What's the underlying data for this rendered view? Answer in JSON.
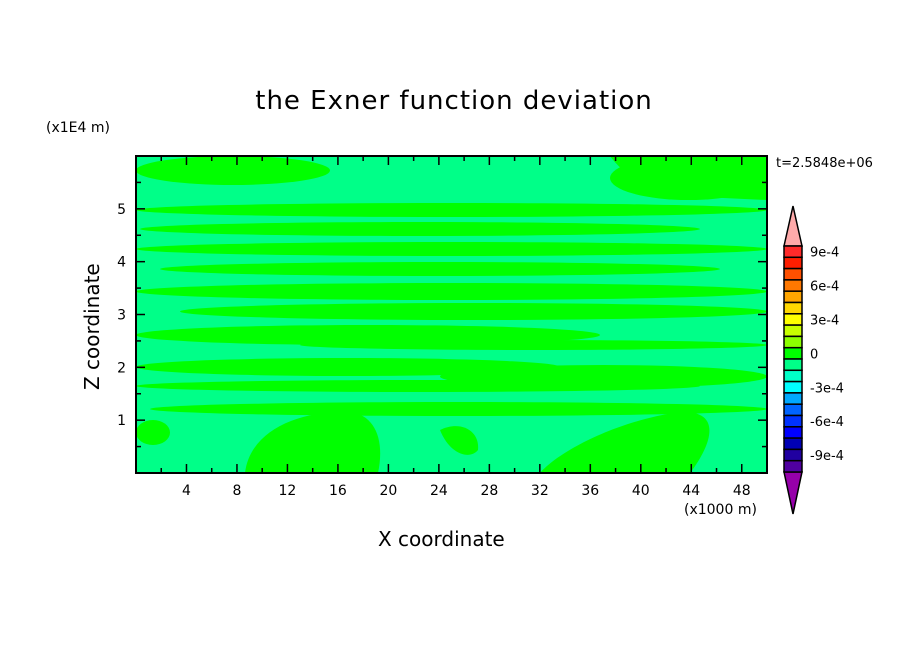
{
  "chart_data": {
    "type": "heatmap",
    "subtype": "filled-contour",
    "title": "the Exner function deviation",
    "xlabel": "X coordinate",
    "ylabel": "Z coordinate",
    "x_unit_label": "(x1000 m)",
    "y_unit_label": "(x1E4 m)",
    "time_label": "t=2.5848e+06",
    "xlim": [
      0,
      50
    ],
    "ylim": [
      0,
      6
    ],
    "x_ticks": [
      "4",
      "8",
      "12",
      "16",
      "20",
      "24",
      "28",
      "32",
      "36",
      "40",
      "44",
      "48"
    ],
    "y_ticks": [
      "1",
      "2",
      "3",
      "4",
      "5"
    ],
    "grid": false,
    "field_levels_present": [
      "-1e-4 to 0",
      "0 to 1e-4"
    ],
    "colorbar": {
      "levels_min": -0.001,
      "levels_max": 0.001,
      "step": 0.0001,
      "tick_labels": [
        "9e-4",
        "6e-4",
        "3e-4",
        "0",
        "-3e-4",
        "-6e-4",
        "-9e-4"
      ],
      "colors_top_to_bottom": [
        "#ff2a2a",
        "#ff1e00",
        "#ff5000",
        "#ff7800",
        "#ffa500",
        "#ffd700",
        "#ffff00",
        "#c8ff00",
        "#8cff00",
        "#00ff00",
        "#00ff88",
        "#00ffc8",
        "#00ffff",
        "#00a8ff",
        "#0064ff",
        "#0032ff",
        "#0000ff",
        "#0000b4",
        "#2000a0",
        "#5000a0"
      ],
      "over_color": "#ffaaaa",
      "under_color": "#9600aa",
      "extend": "both"
    }
  }
}
